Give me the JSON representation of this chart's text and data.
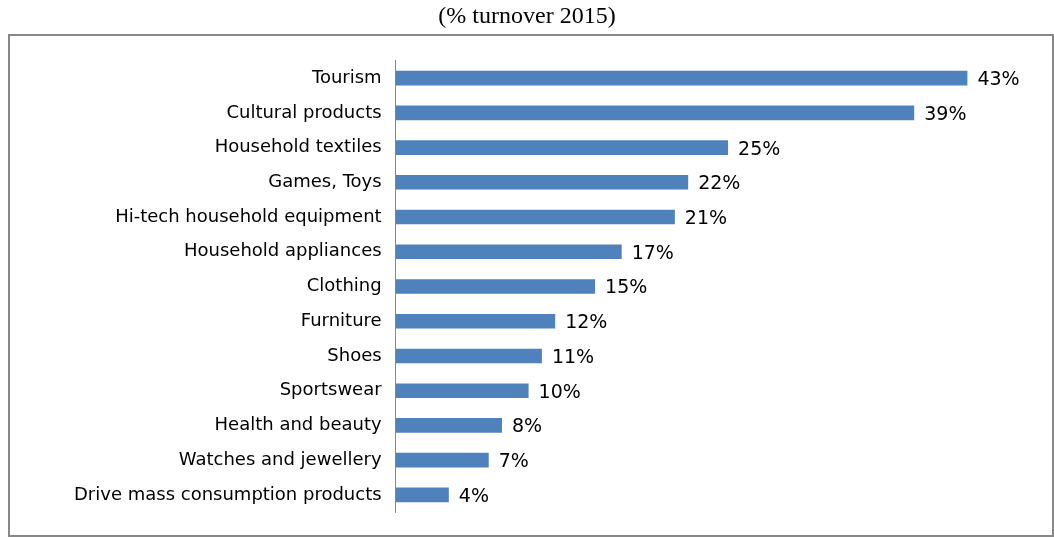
{
  "chart_data": {
    "type": "bar",
    "orientation": "horizontal",
    "title": "(% turnover 2015)",
    "categories": [
      "Tourism",
      "Cultural products",
      "Household textiles",
      "Games, Toys",
      "Hi-tech household equipment",
      "Household appliances",
      "Clothing",
      "Furniture",
      "Shoes",
      "Sportswear",
      "Health and beauty",
      "Watches and jewellery",
      "Drive mass consumption products"
    ],
    "values": [
      43,
      39,
      25,
      22,
      21,
      17,
      15,
      12,
      11,
      10,
      8,
      7,
      4
    ],
    "value_labels": [
      "43%",
      "39%",
      "25%",
      "22%",
      "21%",
      "17%",
      "15%",
      "12%",
      "11%",
      "10%",
      "8%",
      "7%",
      "4%"
    ],
    "color": "#4f81bd"
  }
}
